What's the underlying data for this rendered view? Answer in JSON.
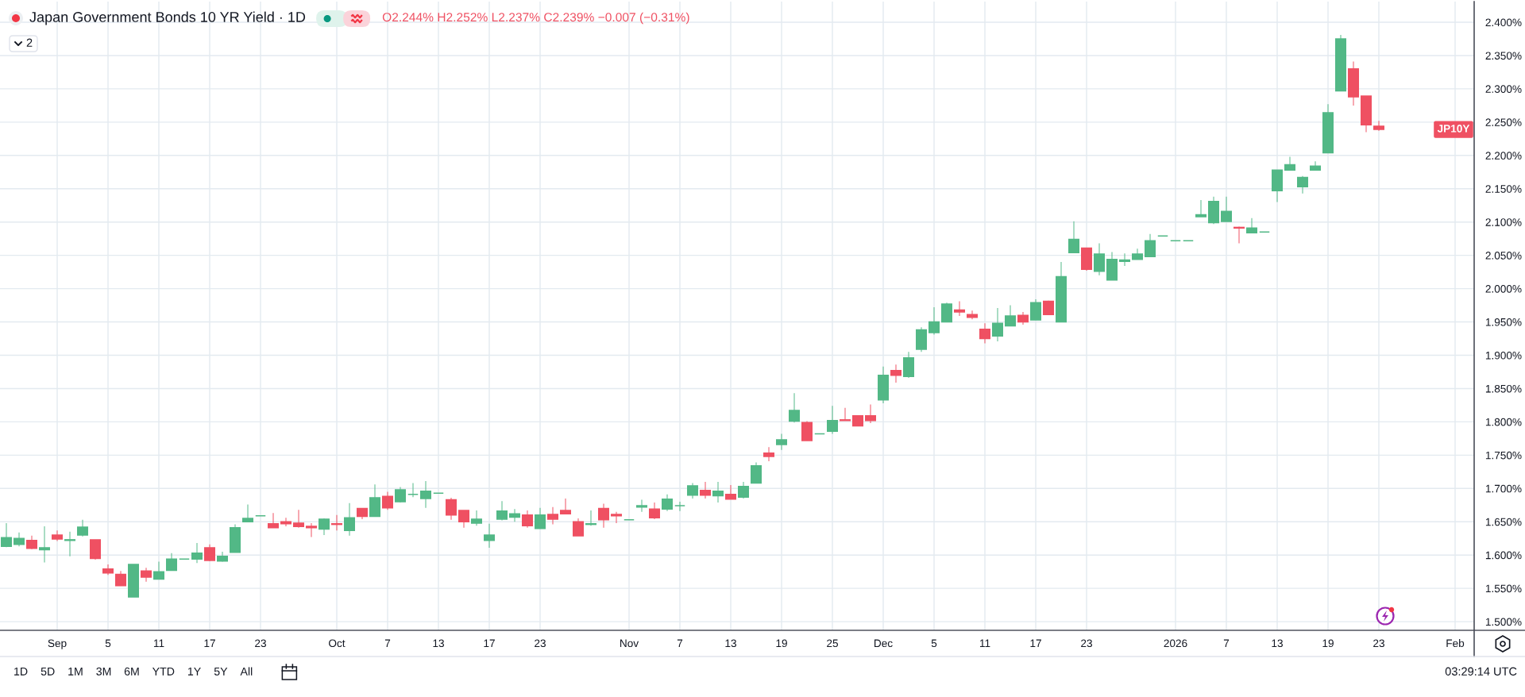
{
  "chart_data": {
    "type": "candlestick",
    "title": "Japan Government Bonds 10 YR Yield · 1D",
    "categories": [
      null,
      null,
      null,
      null,
      "Sep",
      null,
      null,
      null,
      "5",
      null,
      null,
      null,
      "11",
      null,
      null,
      null,
      "17",
      null,
      null,
      null,
      "23",
      null,
      null,
      null,
      null,
      null,
      "Oct",
      null,
      null,
      null,
      "7",
      null,
      null,
      null,
      "13",
      null,
      null,
      null,
      "17",
      null,
      null,
      null,
      "23",
      null,
      null,
      null,
      null,
      null,
      null,
      "Nov",
      null,
      null,
      null,
      "7",
      null,
      null,
      null,
      "13",
      null,
      null,
      null,
      "19",
      null,
      null,
      null,
      "25",
      null,
      null,
      null,
      "Dec",
      null,
      null,
      null,
      "5",
      null,
      null,
      null,
      "11",
      null,
      null,
      null,
      "17",
      null,
      null,
      null,
      "23",
      null,
      null,
      null,
      null,
      null,
      null,
      "2026",
      null,
      null,
      null,
      "7",
      null,
      null,
      null,
      "13",
      null,
      null,
      null,
      "19",
      null,
      null,
      null,
      "23",
      null,
      null,
      null,
      null,
      null,
      "Feb",
      null
    ],
    "ohlc": [
      [
        1.613,
        1.648,
        1.612,
        1.626
      ],
      [
        1.616,
        1.634,
        1.613,
        1.625
      ],
      [
        1.622,
        1.629,
        1.609,
        1.61
      ],
      [
        1.608,
        1.643,
        1.589,
        1.611
      ],
      [
        1.63,
        1.637,
        1.621,
        1.624
      ],
      [
        1.622,
        1.635,
        1.598,
        1.623
      ],
      [
        1.63,
        1.653,
        1.628,
        1.642
      ],
      [
        1.623,
        1.623,
        1.593,
        1.595
      ],
      [
        1.579,
        1.586,
        1.57,
        1.573
      ],
      [
        1.571,
        1.576,
        1.554,
        1.554
      ],
      [
        1.537,
        1.586,
        1.537,
        1.586
      ],
      [
        1.576,
        1.581,
        1.56,
        1.567
      ],
      [
        1.564,
        1.59,
        1.564,
        1.575
      ],
      [
        1.577,
        1.603,
        1.577,
        1.594
      ],
      [
        1.594,
        1.594,
        1.594,
        1.594
      ],
      [
        1.594,
        1.618,
        1.588,
        1.603
      ],
      [
        1.611,
        1.616,
        1.591,
        1.592
      ],
      [
        1.591,
        1.605,
        1.59,
        1.598
      ],
      [
        1.604,
        1.646,
        1.604,
        1.641
      ],
      [
        1.65,
        1.676,
        1.65,
        1.655
      ],
      [
        1.659,
        1.659,
        1.659,
        1.659
      ],
      [
        1.647,
        1.663,
        1.641,
        1.641
      ],
      [
        1.65,
        1.656,
        1.643,
        1.647
      ],
      [
        1.648,
        1.668,
        1.641,
        1.643
      ],
      [
        1.643,
        1.648,
        1.627,
        1.641
      ],
      [
        1.639,
        1.655,
        1.63,
        1.654
      ],
      [
        1.647,
        1.66,
        1.637,
        1.646
      ],
      [
        1.637,
        1.678,
        1.629,
        1.656
      ],
      [
        1.67,
        1.67,
        1.654,
        1.658
      ],
      [
        1.658,
        1.706,
        1.658,
        1.686
      ],
      [
        1.688,
        1.695,
        1.668,
        1.671
      ],
      [
        1.68,
        1.702,
        1.679,
        1.698
      ],
      [
        1.691,
        1.708,
        1.687,
        1.691
      ],
      [
        1.685,
        1.711,
        1.671,
        1.696
      ],
      [
        1.693,
        1.693,
        1.693,
        1.693
      ],
      [
        1.683,
        1.686,
        1.653,
        1.66
      ],
      [
        1.667,
        1.667,
        1.641,
        1.65
      ],
      [
        1.648,
        1.667,
        1.644,
        1.654
      ],
      [
        1.622,
        1.647,
        1.611,
        1.63
      ],
      [
        1.654,
        1.681,
        1.652,
        1.666
      ],
      [
        1.657,
        1.669,
        1.65,
        1.662
      ],
      [
        1.66,
        1.667,
        1.641,
        1.644
      ],
      [
        1.64,
        1.671,
        1.64,
        1.66
      ],
      [
        1.661,
        1.672,
        1.646,
        1.654
      ],
      [
        1.667,
        1.685,
        1.662,
        1.662
      ],
      [
        1.65,
        1.655,
        1.629,
        1.629
      ],
      [
        1.646,
        1.667,
        1.644,
        1.647
      ],
      [
        1.67,
        1.677,
        1.641,
        1.653
      ],
      [
        1.661,
        1.665,
        1.648,
        1.659
      ],
      [
        1.653,
        1.653,
        1.653,
        1.653
      ],
      [
        1.672,
        1.683,
        1.665,
        1.674
      ],
      [
        1.669,
        1.679,
        1.654,
        1.656
      ],
      [
        1.669,
        1.691,
        1.666,
        1.684
      ],
      [
        1.674,
        1.68,
        1.666,
        1.674
      ],
      [
        1.69,
        1.708,
        1.685,
        1.704
      ],
      [
        1.697,
        1.71,
        1.685,
        1.69
      ],
      [
        1.689,
        1.71,
        1.679,
        1.696
      ],
      [
        1.691,
        1.705,
        1.684,
        1.684
      ],
      [
        1.687,
        1.71,
        1.685,
        1.703
      ],
      [
        1.708,
        1.739,
        1.708,
        1.734
      ],
      [
        1.753,
        1.762,
        1.741,
        1.748
      ],
      [
        1.766,
        1.782,
        1.758,
        1.773
      ],
      [
        1.801,
        1.843,
        1.799,
        1.817
      ],
      [
        1.799,
        1.801,
        1.772,
        1.772
      ],
      [
        1.782,
        1.782,
        1.782,
        1.782
      ],
      [
        1.786,
        1.824,
        1.782,
        1.802
      ],
      [
        1.803,
        1.821,
        1.802,
        1.802
      ],
      [
        1.809,
        1.809,
        1.794,
        1.794
      ],
      [
        1.809,
        1.826,
        1.798,
        1.802
      ],
      [
        1.833,
        1.883,
        1.828,
        1.87
      ],
      [
        1.877,
        1.886,
        1.859,
        1.87
      ],
      [
        1.868,
        1.905,
        1.866,
        1.896
      ],
      [
        1.909,
        1.942,
        1.905,
        1.938
      ],
      [
        1.934,
        1.972,
        1.931,
        1.95
      ],
      [
        1.95,
        1.979,
        1.95,
        1.977
      ],
      [
        1.968,
        1.981,
        1.959,
        1.965
      ],
      [
        1.961,
        1.967,
        1.954,
        1.957
      ],
      [
        1.939,
        1.948,
        1.918,
        1.925
      ],
      [
        1.929,
        1.971,
        1.921,
        1.948
      ],
      [
        1.944,
        1.975,
        1.944,
        1.959
      ],
      [
        1.96,
        1.965,
        1.946,
        1.95
      ],
      [
        1.953,
        1.984,
        1.953,
        1.979
      ],
      [
        1.981,
        1.982,
        1.961,
        1.961
      ],
      [
        1.95,
        2.04,
        1.95,
        2.018
      ],
      [
        2.054,
        2.101,
        2.054,
        2.074
      ],
      [
        2.061,
        2.061,
        2.027,
        2.029
      ],
      [
        2.026,
        2.068,
        2.02,
        2.052
      ],
      [
        2.013,
        2.055,
        2.013,
        2.044
      ],
      [
        2.041,
        2.053,
        2.034,
        2.043
      ],
      [
        2.044,
        2.06,
        2.044,
        2.052
      ],
      [
        2.048,
        2.082,
        2.048,
        2.072
      ],
      [
        2.079,
        2.079,
        2.079,
        2.079
      ],
      [
        2.072,
        2.072,
        2.072,
        2.072
      ],
      [
        2.072,
        2.072,
        2.072,
        2.072
      ],
      [
        2.108,
        2.133,
        2.108,
        2.111
      ],
      [
        2.099,
        2.138,
        2.097,
        2.131
      ],
      [
        2.101,
        2.138,
        2.101,
        2.116
      ],
      [
        2.092,
        2.093,
        2.068,
        2.091
      ],
      [
        2.084,
        2.106,
        2.084,
        2.091
      ],
      [
        2.085,
        2.085,
        2.085,
        2.085
      ],
      [
        2.147,
        2.178,
        2.13,
        2.178
      ],
      [
        2.178,
        2.198,
        2.178,
        2.186
      ],
      [
        2.153,
        2.169,
        2.143,
        2.167
      ],
      [
        2.178,
        2.191,
        2.178,
        2.184
      ],
      [
        2.204,
        2.277,
        2.204,
        2.264
      ],
      [
        2.297,
        2.381,
        2.297,
        2.375
      ],
      [
        2.33,
        2.341,
        2.275,
        2.288
      ],
      [
        2.289,
        2.289,
        2.235,
        2.246
      ],
      [
        2.244,
        2.252,
        2.237,
        2.239
      ],
      null,
      null,
      null,
      null,
      null,
      null,
      null
    ],
    "colors": [
      "#52b886",
      "#52b886",
      "#ef5062",
      "#52b886",
      "#ef5062",
      "#52b886",
      "#52b886",
      "#ef5062",
      "#ef5062",
      "#ef5062",
      "#52b886",
      "#ef5062",
      "#52b886",
      "#52b886",
      "#52b886",
      "#52b886",
      "#ef5062",
      "#52b886",
      "#52b886",
      "#52b886",
      "#52b886",
      "#ef5062",
      "#ef5062",
      "#ef5062",
      "#ef5062",
      "#52b886",
      "#ef5062",
      "#52b886",
      "#ef5062",
      "#52b886",
      "#ef5062",
      "#52b886",
      "#52b886",
      "#52b886",
      "#52b886",
      "#ef5062",
      "#ef5062",
      "#52b886",
      "#52b886",
      "#52b886",
      "#52b886",
      "#ef5062",
      "#52b886",
      "#ef5062",
      "#ef5062",
      "#ef5062",
      "#52b886",
      "#ef5062",
      "#ef5062",
      "#52b886",
      "#52b886",
      "#ef5062",
      "#52b886",
      "#52b886",
      "#52b886",
      "#ef5062",
      "#52b886",
      "#ef5062",
      "#52b886",
      "#52b886",
      "#ef5062",
      "#52b886",
      "#52b886",
      "#ef5062",
      "#52b886",
      "#52b886",
      "#ef5062",
      "#ef5062",
      "#ef5062",
      "#52b886",
      "#ef5062",
      "#52b886",
      "#52b886",
      "#52b886",
      "#52b886",
      "#ef5062",
      "#ef5062",
      "#ef5062",
      "#52b886",
      "#52b886",
      "#ef5062",
      "#52b886",
      "#ef5062",
      "#52b886",
      "#52b886",
      "#ef5062",
      "#52b886",
      "#52b886",
      "#52b886",
      "#52b886",
      "#52b886",
      "#52b886",
      "#52b886",
      "#52b886",
      "#52b886",
      "#52b886",
      "#52b886",
      "#ef5062",
      "#52b886",
      "#52b886",
      "#52b886",
      "#52b886",
      "#52b886",
      "#52b886",
      "#52b886",
      "#52b886",
      "#ef5062",
      "#ef5062",
      "#ef5062",
      null,
      null,
      null,
      null,
      null,
      null,
      null
    ],
    "ylim": [
      1.487,
      2.431
    ],
    "yticks": [
      {
        "value": 1.5,
        "label": "1.500%"
      },
      {
        "value": 1.55,
        "label": "1.550%"
      },
      {
        "value": 1.6,
        "label": "1.600%"
      },
      {
        "value": 1.65,
        "label": "1.650%"
      },
      {
        "value": 1.7,
        "label": "1.700%"
      },
      {
        "value": 1.75,
        "label": "1.750%"
      },
      {
        "value": 1.8,
        "label": "1.800%"
      },
      {
        "value": 1.85,
        "label": "1.850%"
      },
      {
        "value": 1.9,
        "label": "1.900%"
      },
      {
        "value": 1.95,
        "label": "1.950%"
      },
      {
        "value": 2.0,
        "label": "2.000%"
      },
      {
        "value": 2.05,
        "label": "2.050%"
      },
      {
        "value": 2.1,
        "label": "2.100%"
      },
      {
        "value": 2.15,
        "label": "2.150%"
      },
      {
        "value": 2.2,
        "label": "2.200%"
      },
      {
        "value": 2.25,
        "label": "2.250%"
      },
      {
        "value": 2.3,
        "label": "2.300%"
      },
      {
        "value": 2.35,
        "label": "2.350%"
      },
      {
        "value": 2.4,
        "label": "2.400%"
      }
    ],
    "grid": true,
    "annotations": [
      "O2.244% H2.252% L2.237% C2.239% −0.007 (−0.31%)",
      "JP10Y",
      "2",
      "1D 5D 1M 3M 6M YTD 1Y 5Y All",
      "03:29:14 UTC"
    ]
  }
}
